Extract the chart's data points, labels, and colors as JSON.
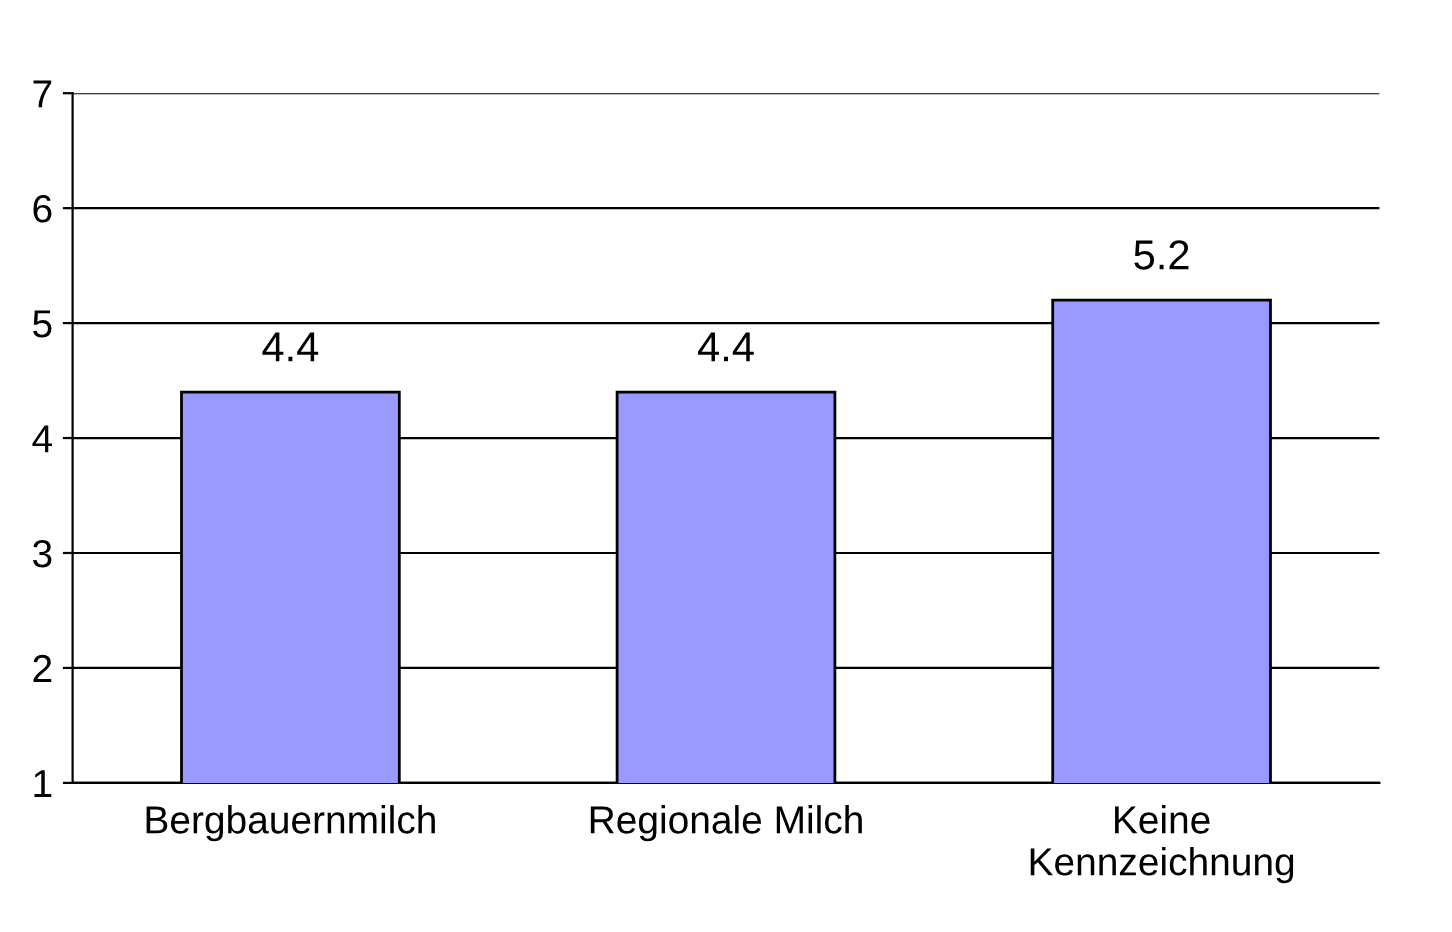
{
  "chart_data": {
    "type": "bar",
    "categories": [
      "Bergbauernmilch",
      "Regionale Milch",
      "Keine\nKennzeichnung"
    ],
    "values": [
      4.4,
      4.4,
      5.2
    ],
    "color": "#9999ff",
    "ylim": [
      1,
      7
    ],
    "yticks": [
      1,
      2,
      3,
      4,
      5,
      6,
      7
    ],
    "grid": "y",
    "data_labels": true
  }
}
